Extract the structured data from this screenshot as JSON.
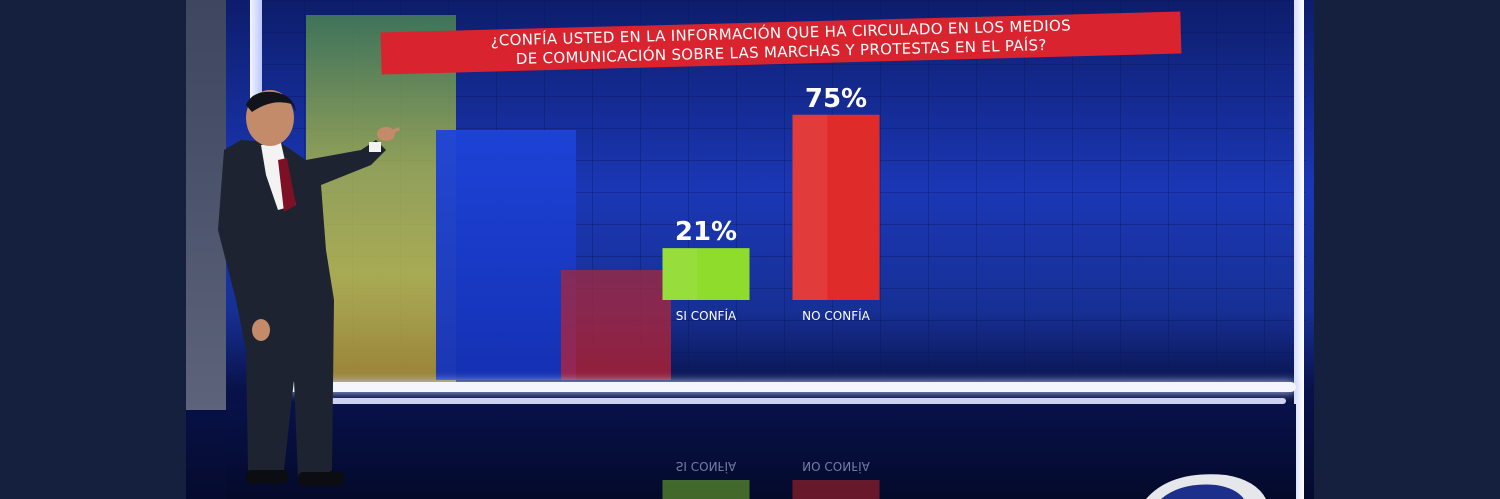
{
  "chart_data": {
    "type": "bar",
    "title_lines": [
      "¿CONFÍA USTED EN LA INFORMACIÓN QUE HA CIRCULADO EN LOS MEDIOS",
      "DE COMUNICACIÓN SOBRE LAS MARCHAS Y PROTESTAS EN EL PAÍS?"
    ],
    "categories": [
      "SI CONFÍA",
      "NO CONFÍA"
    ],
    "values": [
      21,
      75
    ],
    "value_labels": [
      "21%",
      "75%"
    ],
    "reflected_labels": [
      "SI CONFÍA",
      "NO CONFÍA"
    ],
    "ylim": [
      0,
      100
    ],
    "grid": false,
    "colors": [
      "#8fdc2c",
      "#e02b2b"
    ],
    "xlabel": "",
    "ylabel": ""
  },
  "colors": {
    "title_band": "#d9232e",
    "wall": "#1b37b5",
    "page": "#14203e"
  },
  "icons": {
    "logo": "network-logo-icon"
  }
}
